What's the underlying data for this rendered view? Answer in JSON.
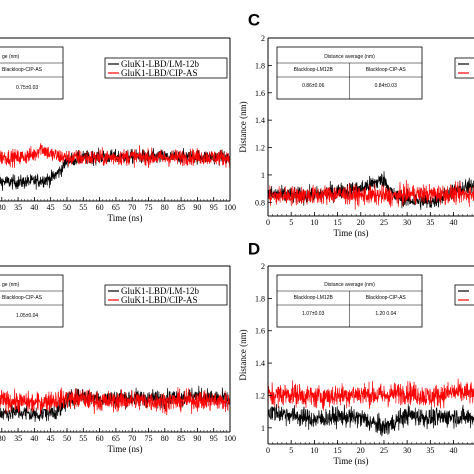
{
  "chart_data": [
    {
      "id": "top-left",
      "type": "line",
      "panel_label": "",
      "xlabel": "Time (ns)",
      "ylabel": "",
      "x_ticks": [
        "30",
        "35",
        "40",
        "45",
        "50",
        "55",
        "60",
        "65",
        "70",
        "75",
        "80",
        "85",
        "90",
        "95",
        "100"
      ],
      "xlim": [
        27,
        100
      ],
      "ylim": [
        0.6,
        2.0
      ],
      "legend": {
        "position": "top-right",
        "entries": [
          "GluK1-LBD/LM-12b",
          "GluK1-LBD/CIP-AS"
        ]
      },
      "table": {
        "header": "ge (nm)",
        "row_label": "Blackloop-CIP-AS",
        "value": "0.75±0.03"
      },
      "series": [
        {
          "name": "GluK1-LBD/LM-12b",
          "color": "#000000",
          "x": [
            27,
            35,
            40,
            45,
            48,
            50,
            55,
            60,
            70,
            80,
            90,
            100
          ],
          "y": [
            0.77,
            0.76,
            0.77,
            0.79,
            0.86,
            0.95,
            0.97,
            0.98,
            0.98,
            0.98,
            0.98,
            0.97
          ]
        },
        {
          "name": "GluK1-LBD/CIP-AS",
          "color": "#ff0000",
          "x": [
            27,
            30,
            35,
            40,
            42,
            45,
            50,
            55,
            60,
            70,
            80,
            90,
            100
          ],
          "y": [
            0.97,
            0.98,
            0.97,
            1.0,
            1.06,
            1.0,
            0.97,
            0.97,
            0.97,
            0.98,
            0.97,
            0.98,
            0.97
          ]
        }
      ]
    },
    {
      "id": "C",
      "type": "line",
      "panel_label": "C",
      "xlabel": "Time (ns)",
      "ylabel": "Distance (nm)",
      "x_ticks": [
        "0",
        "5",
        "10",
        "15",
        "20",
        "25",
        "30",
        "35",
        "40",
        "45"
      ],
      "y_ticks": [
        "0.8",
        "1",
        "1.2",
        "1.4",
        "1.6",
        "1.8",
        "2"
      ],
      "xlim": [
        0,
        47
      ],
      "ylim": [
        0.7,
        2.0
      ],
      "legend": {
        "position": "top-right",
        "entries": [
          "",
          ""
        ]
      },
      "table": {
        "header": "Distance average (nm)",
        "col1": "Blackloop-LM12B",
        "col2": "Blackloop-CIP-AS",
        "val1": "0.86±0.06",
        "val2": "0.84±0.03"
      },
      "series": [
        {
          "name": "",
          "color": "#000000",
          "x": [
            0,
            5,
            10,
            15,
            20,
            25,
            27,
            30,
            35,
            40,
            45,
            47
          ],
          "y": [
            0.86,
            0.85,
            0.85,
            0.88,
            0.9,
            0.97,
            0.85,
            0.82,
            0.8,
            0.88,
            0.93,
            0.93
          ]
        },
        {
          "name": "",
          "color": "#ff0000",
          "x": [
            0,
            5,
            10,
            15,
            20,
            25,
            27,
            30,
            35,
            40,
            45,
            47
          ],
          "y": [
            0.84,
            0.85,
            0.85,
            0.86,
            0.85,
            0.85,
            0.84,
            0.86,
            0.86,
            0.86,
            0.86,
            0.85
          ]
        }
      ]
    },
    {
      "id": "bottom-left",
      "type": "line",
      "panel_label": "",
      "xlabel": "Time (ns)",
      "ylabel": "",
      "x_ticks": [
        "30",
        "35",
        "40",
        "45",
        "50",
        "55",
        "60",
        "65",
        "70",
        "75",
        "80",
        "85",
        "90",
        "95",
        "100"
      ],
      "xlim": [
        27,
        100
      ],
      "ylim": [
        0.85,
        2.0
      ],
      "legend": {
        "position": "top-right",
        "entries": [
          "GluK1-LBD/LM-12b",
          "GluK1-LBD/CIP-AS"
        ]
      },
      "table": {
        "header": "ge (nm)",
        "row_label": "Blackloop-CIP-AS",
        "value": "1.05±0.04"
      },
      "series": [
        {
          "name": "GluK1-LBD/LM-12b",
          "color": "#000000",
          "x": [
            27,
            30,
            35,
            40,
            45,
            48,
            50,
            55,
            60,
            70,
            80,
            90,
            100
          ],
          "y": [
            1.0,
            0.98,
            0.99,
            0.97,
            0.99,
            1.0,
            1.07,
            1.1,
            1.08,
            1.09,
            1.08,
            1.1,
            1.07
          ]
        },
        {
          "name": "GluK1-LBD/CIP-AS",
          "color": "#ff0000",
          "x": [
            27,
            30,
            35,
            40,
            45,
            50,
            55,
            60,
            70,
            80,
            90,
            100
          ],
          "y": [
            1.06,
            1.07,
            1.06,
            1.05,
            1.07,
            1.08,
            1.08,
            1.06,
            1.07,
            1.06,
            1.07,
            1.06
          ]
        }
      ]
    },
    {
      "id": "D",
      "type": "line",
      "panel_label": "D",
      "xlabel": "Time (ns)",
      "ylabel": "Distance (nm)",
      "x_ticks": [
        "0",
        "5",
        "10",
        "15",
        "20",
        "25",
        "30",
        "35",
        "40",
        "45"
      ],
      "y_ticks": [
        "1",
        "1.2",
        "1.4",
        "1.6",
        "1.8",
        "2"
      ],
      "xlim": [
        0,
        47
      ],
      "ylim": [
        0.9,
        2.0
      ],
      "legend": {
        "position": "top-right",
        "entries": [
          "",
          ""
        ]
      },
      "table": {
        "header": "Distance average (nm)",
        "col1": "Blackloop-LM12B",
        "col2": "Blackloop-CIP-AS",
        "val1": "1.07±0.03",
        "val2": "1.20 0.04"
      },
      "series": [
        {
          "name": "",
          "color": "#000000",
          "x": [
            0,
            5,
            10,
            15,
            20,
            25,
            30,
            35,
            40,
            45,
            47
          ],
          "y": [
            1.1,
            1.08,
            1.05,
            1.07,
            1.06,
            1.0,
            1.08,
            1.06,
            1.07,
            1.06,
            1.06
          ]
        },
        {
          "name": "",
          "color": "#ff0000",
          "x": [
            0,
            5,
            10,
            15,
            20,
            25,
            30,
            35,
            40,
            45,
            47
          ],
          "y": [
            1.2,
            1.21,
            1.19,
            1.2,
            1.21,
            1.2,
            1.22,
            1.19,
            1.22,
            1.21,
            1.2
          ]
        }
      ]
    }
  ]
}
